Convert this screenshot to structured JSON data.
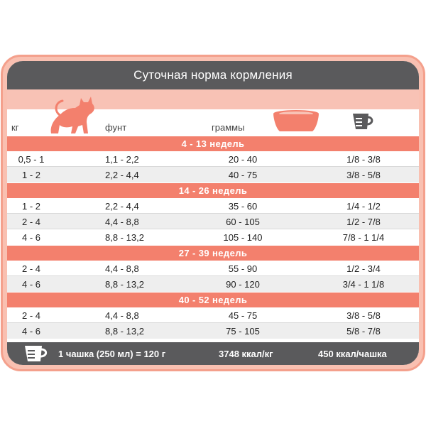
{
  "title": "Суточная норма кормления",
  "columns": {
    "kg": "кг",
    "lb": "фунт",
    "grams": "граммы",
    "cat_icon": "cat-icon",
    "bowl_icon": "bowl-icon",
    "cup_icon": "measuring-cup-icon"
  },
  "sections": [
    {
      "label": "4 - 13 недель",
      "rows": [
        {
          "kg": "0,5 - 1",
          "lb": "1,1 - 2,2",
          "g": "20 - 40",
          "cup": "1/8 - 3/8"
        },
        {
          "kg": "1 - 2",
          "lb": "2,2 - 4,4",
          "g": "40 - 75",
          "cup": "3/8 - 5/8"
        }
      ]
    },
    {
      "label": "14 - 26 недель",
      "rows": [
        {
          "kg": "1 - 2",
          "lb": "2,2 - 4,4",
          "g": "35 - 60",
          "cup": "1/4 - 1/2"
        },
        {
          "kg": "2 - 4",
          "lb": "4,4 - 8,8",
          "g": "60 - 105",
          "cup": "1/2 - 7/8"
        },
        {
          "kg": "4 - 6",
          "lb": "8,8 - 13,2",
          "g": "105 - 140",
          "cup": "7/8 - 1 1/4"
        }
      ]
    },
    {
      "label": "27 - 39 недель",
      "rows": [
        {
          "kg": "2 - 4",
          "lb": "4,4 - 8,8",
          "g": "55 - 90",
          "cup": "1/2 - 3/4"
        },
        {
          "kg": "4 - 6",
          "lb": "8,8 - 13,2",
          "g": "90 - 120",
          "cup": "3/4 - 1 1/8"
        }
      ]
    },
    {
      "label": "40 - 52 недель",
      "rows": [
        {
          "kg": "2 - 4",
          "lb": "4,4 - 8,8",
          "g": "45 - 75",
          "cup": "3/8 - 5/8"
        },
        {
          "kg": "4 - 6",
          "lb": "8,8 - 13,2",
          "g": "75 - 105",
          "cup": "5/8 - 7/8"
        }
      ]
    }
  ],
  "footer": {
    "cup_text": "1 чашка (250 мл) = 120 г",
    "kcal_kg": "3748 ккал/кг",
    "kcal_cup": "450 ккал/чашка"
  },
  "colors": {
    "accent": "#f3806d",
    "band": "#f8c2b5",
    "dark": "#5a5a5c",
    "stripe": "#eeeeee"
  }
}
